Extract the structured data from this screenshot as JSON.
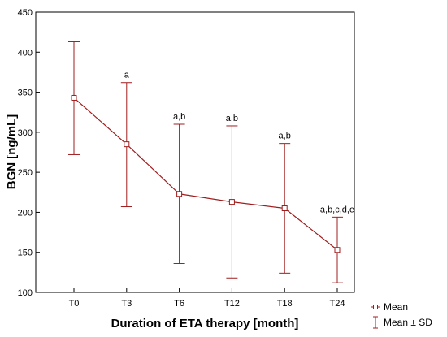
{
  "chart_data": {
    "type": "line",
    "title": "",
    "xlabel": "Duration of ETA therapy [month]",
    "ylabel": "BGN [ng/mL]",
    "ylim": [
      100,
      450
    ],
    "yticks": [
      100,
      150,
      200,
      250,
      300,
      350,
      400,
      450
    ],
    "categories": [
      "T0",
      "T3",
      "T6",
      "T12",
      "T18",
      "T24"
    ],
    "grid": false,
    "legend_position": "bottom-right",
    "series": [
      {
        "name": "Mean",
        "values": [
          343,
          285,
          223,
          213,
          205,
          153
        ],
        "sd_upper": [
          413,
          362,
          310,
          308,
          286,
          194
        ],
        "sd_lower": [
          272,
          207,
          136,
          118,
          124,
          112
        ]
      }
    ],
    "annotations": [
      "",
      "a",
      "a,b",
      "a,b",
      "a,b",
      "a,b,c,d,e"
    ],
    "legend": [
      {
        "label": "Mean",
        "marker": "square"
      },
      {
        "label": "Mean ± SD",
        "marker": "errorbar"
      }
    ],
    "colors": {
      "series": "#a01c1c",
      "axis": "#000000",
      "background": "#ffffff"
    }
  }
}
